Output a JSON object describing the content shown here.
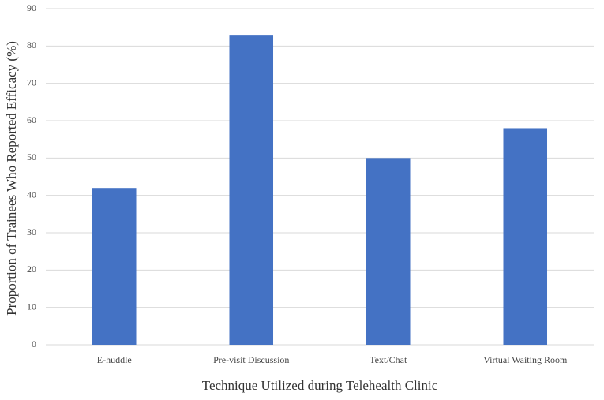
{
  "chart_data": {
    "type": "bar",
    "xlabel": "Technique Utilized during Telehealth Clinic",
    "ylabel": "Proportion of Trainees Who Reported Efficacy (%)",
    "categories": [
      "E-huddle",
      "Pre-visit Discussion",
      "Text/Chat",
      "Virtual Waiting Room"
    ],
    "values": [
      42,
      83,
      50,
      58
    ],
    "color": "#4472c4",
    "ylim": [
      0,
      90
    ],
    "yticks": [
      0,
      10,
      20,
      30,
      40,
      50,
      60,
      70,
      80,
      90
    ],
    "grid": true
  }
}
